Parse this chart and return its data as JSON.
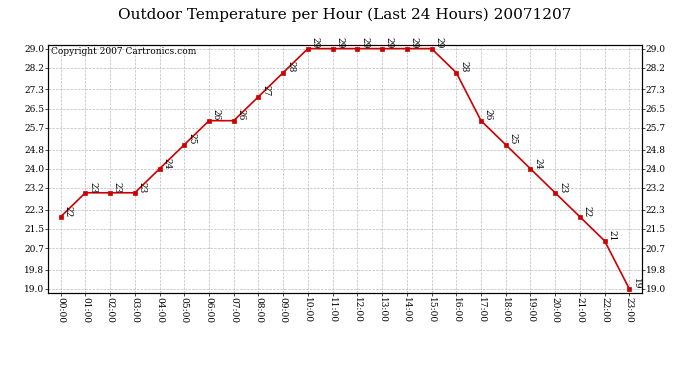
{
  "title": "Outdoor Temperature per Hour (Last 24 Hours) 20071207",
  "copyright": "Copyright 2007 Cartronics.com",
  "hours": [
    "00:00",
    "01:00",
    "02:00",
    "03:00",
    "04:00",
    "05:00",
    "06:00",
    "07:00",
    "08:00",
    "09:00",
    "10:00",
    "11:00",
    "12:00",
    "13:00",
    "14:00",
    "15:00",
    "16:00",
    "17:00",
    "18:00",
    "19:00",
    "20:00",
    "21:00",
    "22:00",
    "23:00"
  ],
  "temps": [
    22,
    23,
    23,
    23,
    24,
    25,
    26,
    26,
    27,
    28,
    29,
    29,
    29,
    29,
    29,
    29,
    28,
    26,
    25,
    24,
    23,
    22,
    21,
    19
  ],
  "line_color": "#cc0000",
  "marker_color": "#cc0000",
  "background_color": "#ffffff",
  "grid_color": "#bbbbbb",
  "ylim_min": 19.0,
  "ylim_max": 29.0,
  "yticks": [
    19.0,
    19.8,
    20.7,
    21.5,
    22.3,
    23.2,
    24.0,
    24.8,
    25.7,
    26.5,
    27.3,
    28.2,
    29.0
  ],
  "title_fontsize": 11,
  "copyright_fontsize": 6.5,
  "tick_fontsize": 6.5,
  "label_fontsize": 6.5
}
